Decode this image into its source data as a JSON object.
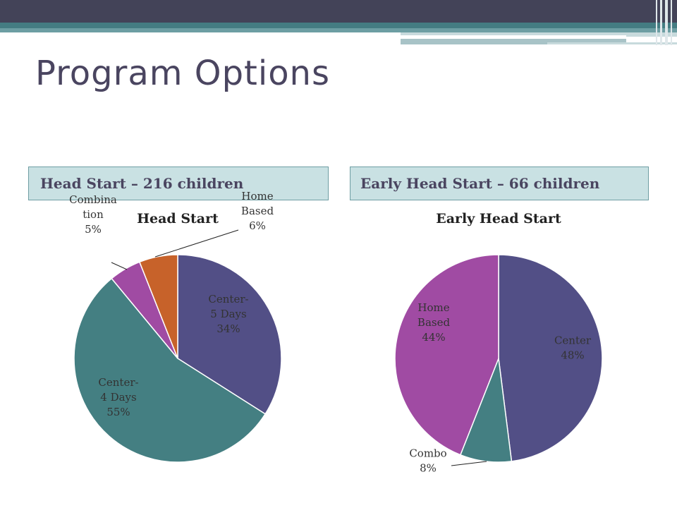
{
  "slide": {
    "title": "Program Options",
    "left_header": "Head Start – 216 children",
    "right_header": "Early Head Start – 66 children"
  },
  "colors": {
    "center_purple": "#524f86",
    "teal": "#447f82",
    "magenta": "#a04ba3",
    "orange": "#c7622a"
  },
  "chart_data": [
    {
      "type": "pie",
      "title": "Head Start",
      "slices": [
        {
          "label": [
            "Center-",
            "5 Days",
            "34%"
          ],
          "value": 34,
          "color": "#524f86"
        },
        {
          "label": [
            "Center-",
            "4 Days",
            "55%"
          ],
          "value": 55,
          "color": "#447f82"
        },
        {
          "label": [
            "Combina",
            "tion",
            "5%"
          ],
          "value": 5,
          "color": "#a04ba3"
        },
        {
          "label": [
            "Home",
            "Based",
            "6%"
          ],
          "value": 6,
          "color": "#c7622a"
        }
      ]
    },
    {
      "type": "pie",
      "title": "Early Head Start",
      "slices": [
        {
          "label": [
            "Center",
            "48%"
          ],
          "value": 48,
          "color": "#524f86"
        },
        {
          "label": [
            "Combo",
            "8%"
          ],
          "value": 8,
          "color": "#447f82"
        },
        {
          "label": [
            "Home",
            "Based",
            "44%"
          ],
          "value": 44,
          "color": "#a04ba3"
        }
      ]
    }
  ]
}
